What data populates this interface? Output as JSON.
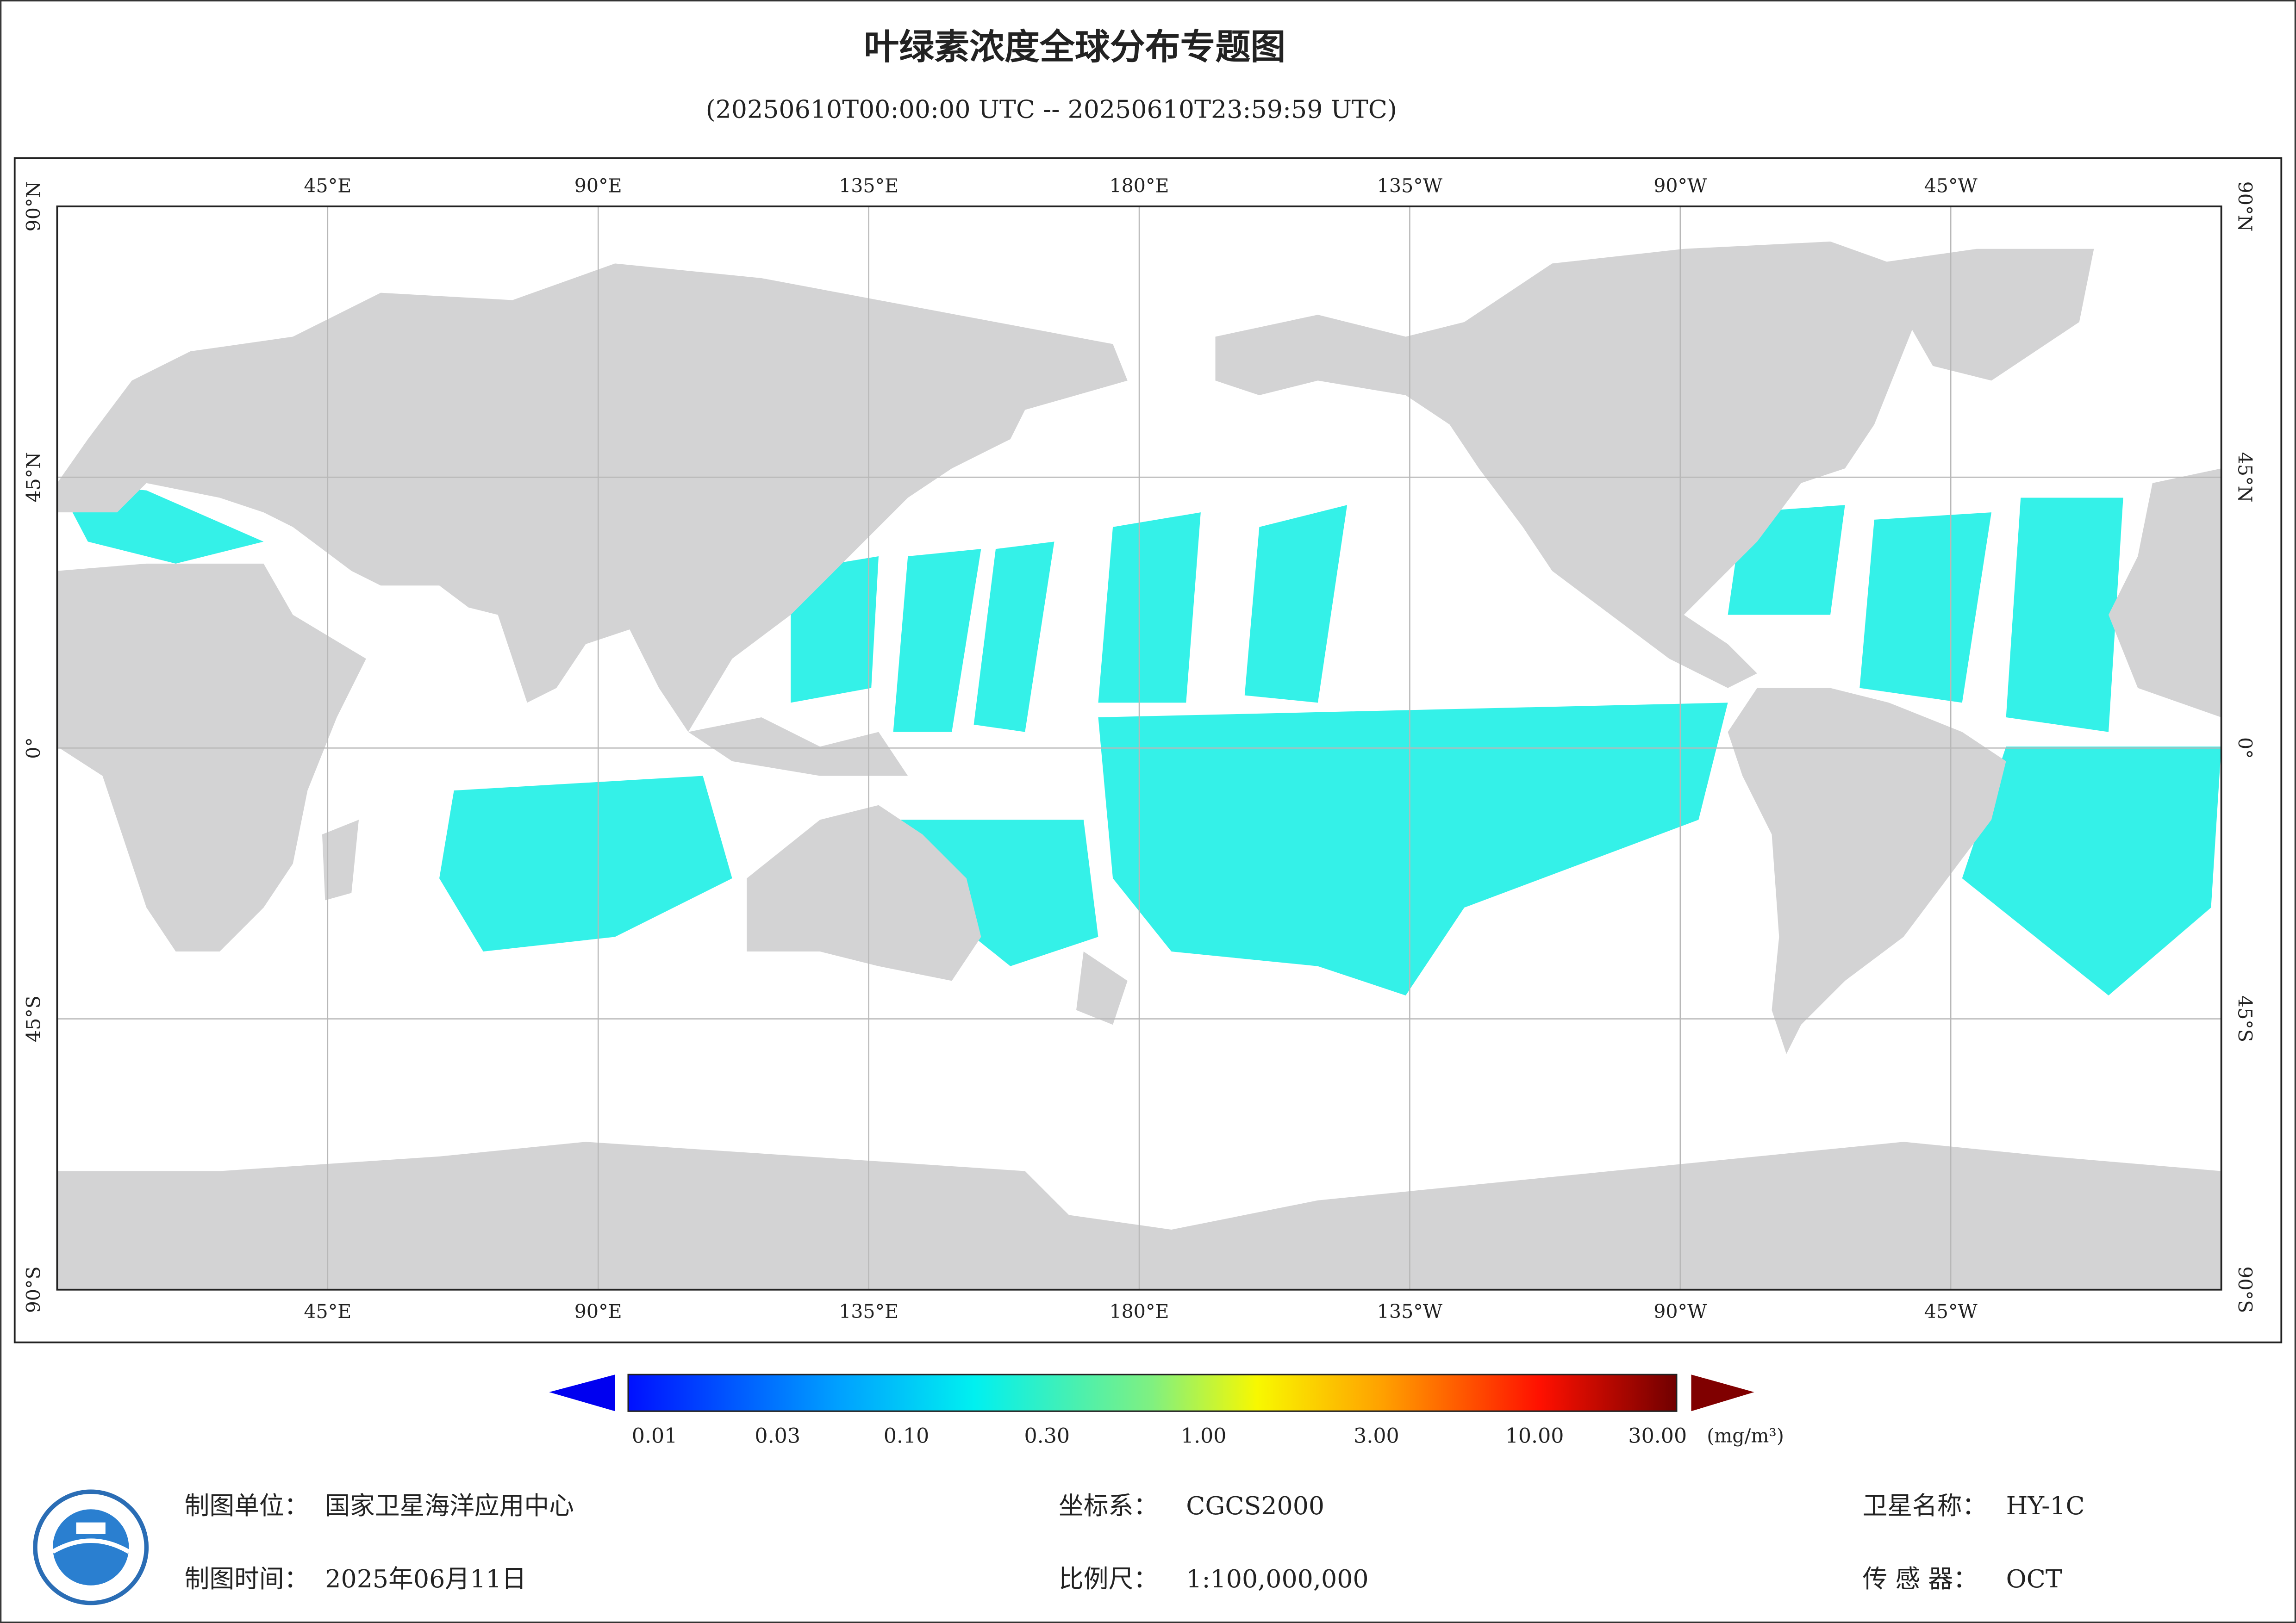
{
  "header": {
    "title": "叶绿素浓度全球分布专题图",
    "subtitle": "(20250610T00:00:00 UTC -- 20250610T23:59:59 UTC)"
  },
  "map": {
    "lon_labels": [
      "45°E",
      "90°E",
      "135°E",
      "180°E",
      "135°W",
      "90°W",
      "45°W"
    ],
    "lat_labels": [
      "90°N",
      "45°N",
      "0°",
      "45°S",
      "90°S"
    ]
  },
  "colorbar": {
    "ticks": [
      "0.01",
      "0.03",
      "0.10",
      "0.30",
      "1.00",
      "3.00",
      "10.00",
      "30.00"
    ],
    "unit": "(mg/m³)"
  },
  "footer": {
    "unit": {
      "label": "制图单位：",
      "value": "国家卫星海洋应用中心"
    },
    "time": {
      "label": "制图时间：",
      "value": "2025年06月11日"
    },
    "crs": {
      "label": "坐标系：",
      "value": "CGCS2000"
    },
    "scale": {
      "label": "比例尺：",
      "value": "1:100,000,000"
    },
    "satellite": {
      "label": "卫星名称：",
      "value": "HY-1C"
    },
    "sensor": {
      "label": "传 感 器：",
      "value": "OCT"
    }
  }
}
